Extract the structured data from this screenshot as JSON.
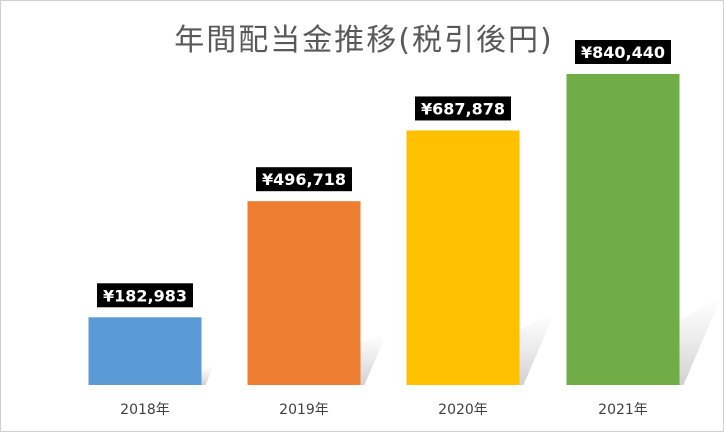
{
  "chart_data": {
    "type": "bar",
    "title": "年間配当金推移(税引後円)",
    "categories": [
      "2018年",
      "2019年",
      "2020年",
      "2021年"
    ],
    "values": [
      182983,
      496718,
      687878,
      840440
    ],
    "data_labels": [
      "¥182,983",
      "¥496,718",
      "¥687,878",
      "¥840,440"
    ],
    "colors": [
      "#5b9bd5",
      "#ed7d31",
      "#ffc000",
      "#70ad47"
    ],
    "ylim": [
      0,
      900000
    ],
    "grid": false,
    "legend": "none"
  }
}
